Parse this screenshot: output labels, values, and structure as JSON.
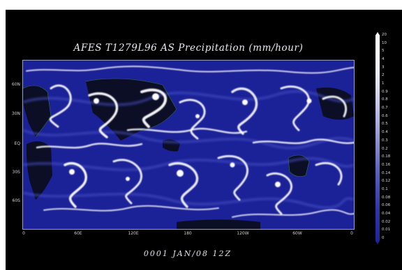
{
  "figure": {
    "title": "AFES T1279L96 AS Precipitation (mm/hour)",
    "timestamp": "0001 JAN/08 12Z"
  },
  "colors": {
    "background": "#000000",
    "ocean_low": "#1c229a",
    "land": "#0a0a14",
    "high_precip": "#ffffff",
    "coastline": "#3a7a3a"
  },
  "axes": {
    "y_ticks": [
      "60N",
      "30N",
      "EQ",
      "30S",
      "60S"
    ],
    "x_ticks": [
      "0",
      "60E",
      "120E",
      "180",
      "120W",
      "60W",
      "0"
    ]
  },
  "colorbar": {
    "labels": [
      "20",
      "10",
      "5",
      "4",
      "3",
      "2",
      "1",
      "0.9",
      "0.8",
      "0.7",
      "0.6",
      "0.5",
      "0.4",
      "0.3",
      "0.2",
      "0.18",
      "0.16",
      "0.14",
      "0.12",
      "0.1",
      "0.08",
      "0.06",
      "0.04",
      "0.02",
      "0.01",
      "0"
    ]
  }
}
